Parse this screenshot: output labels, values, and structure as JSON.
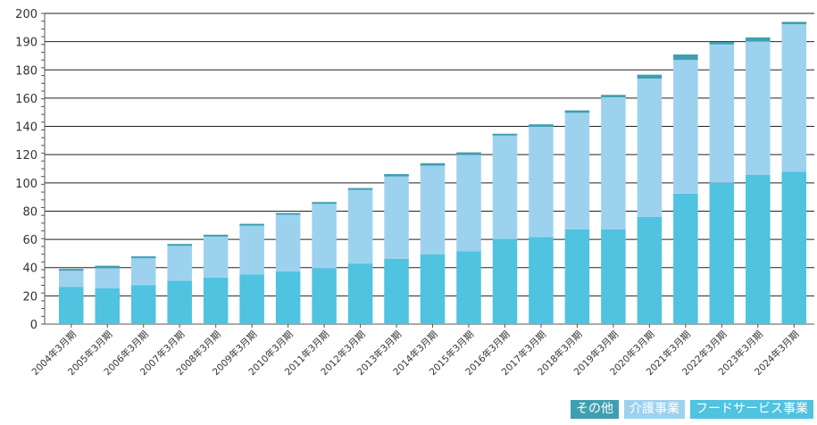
{
  "chart_data": {
    "type": "bar",
    "stacked": true,
    "categories": [
      "2004年3月期",
      "2005年3月期",
      "2006年3月期",
      "2007年3月期",
      "2008年3月期",
      "2009年3月期",
      "2010年3月期",
      "2011年3月期",
      "2012年3月期",
      "2013年3月期",
      "2014年3月期",
      "2015年3月期",
      "2016年3月期",
      "2017年3月期",
      "2018年3月期",
      "2019年3月期",
      "2020年3月期",
      "2021年3月期",
      "2022年3月期",
      "2023年3月期",
      "2024年3月期"
    ],
    "y_ticks": [
      "0",
      "20",
      "40",
      "60",
      "80",
      "100",
      "120",
      "140",
      "160",
      "180",
      "190",
      "200"
    ],
    "ylim": [
      0,
      200
    ],
    "grid": true,
    "legend_position": "bottom-right",
    "series": [
      {
        "name": "フードサービス事業",
        "color": "#4fc3e0",
        "values": [
          24,
          23,
          25,
          28,
          30,
          32,
          34,
          36,
          39,
          42,
          45,
          47,
          55,
          56,
          61,
          61,
          69,
          84,
          91,
          96,
          98
        ]
      },
      {
        "name": "介護事業",
        "color": "#9dd2ef",
        "values": [
          11,
          13,
          18,
          23,
          27,
          32,
          37,
          42,
          48,
          53,
          57,
          62,
          67,
          71,
          75,
          85,
          89,
          86,
          89,
          86,
          95
        ]
      },
      {
        "name": "その他",
        "color": "#3f9fb0",
        "values": [
          0,
          1,
          0,
          0,
          0,
          0,
          0,
          0,
          0,
          1,
          1,
          1,
          0,
          1,
          1,
          1,
          2,
          3,
          1,
          2,
          1
        ]
      }
    ],
    "legend": [
      "その他",
      "介護事業",
      "フードサービス事業"
    ]
  }
}
